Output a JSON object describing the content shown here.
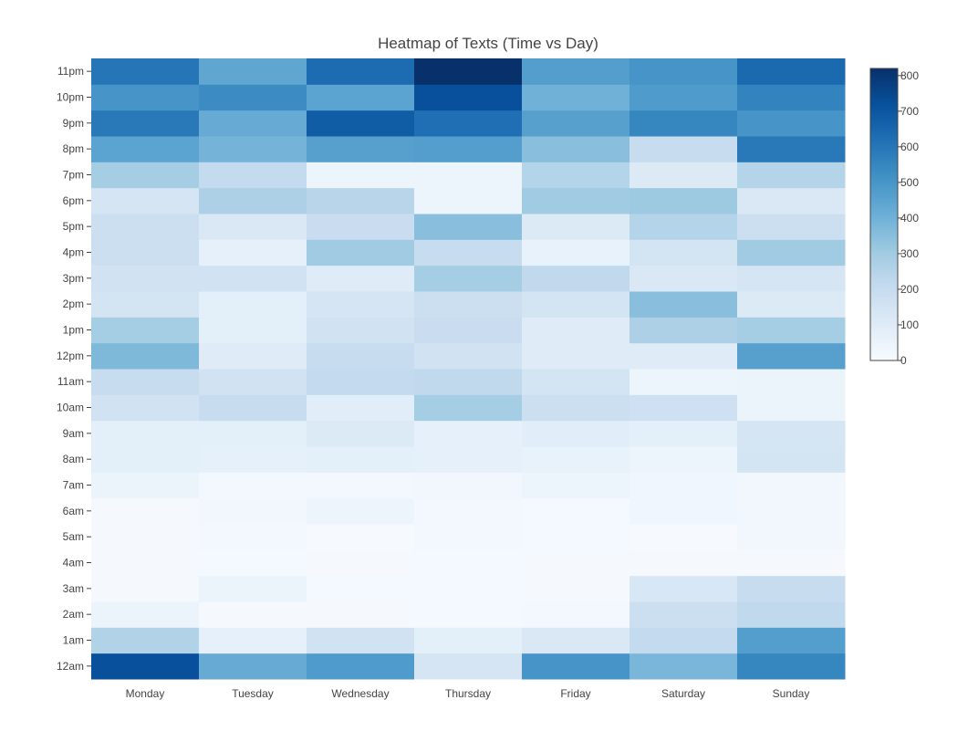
{
  "chart_data": {
    "type": "heatmap",
    "title": "Heatmap of Texts (Time vs Day)",
    "xlabel": "",
    "ylabel": "",
    "x": [
      "Monday",
      "Tuesday",
      "Wednesday",
      "Thursday",
      "Friday",
      "Saturday",
      "Sunday"
    ],
    "y": [
      "12am",
      "1am",
      "2am",
      "3am",
      "4am",
      "5am",
      "6am",
      "7am",
      "8am",
      "9am",
      "10am",
      "11am",
      "12pm",
      "1pm",
      "2pm",
      "3pm",
      "4pm",
      "5pm",
      "6pm",
      "7pm",
      "8pm",
      "9pm",
      "10pm",
      "11pm"
    ],
    "z": [
      [
        720,
        420,
        480,
        140,
        500,
        380,
        550
      ],
      [
        260,
        70,
        160,
        80,
        120,
        210,
        470
      ],
      [
        50,
        10,
        10,
        15,
        20,
        180,
        220
      ],
      [
        10,
        50,
        15,
        15,
        10,
        130,
        200
      ],
      [
        10,
        15,
        10,
        15,
        10,
        10,
        10
      ],
      [
        10,
        20,
        5,
        20,
        15,
        5,
        25
      ],
      [
        10,
        25,
        40,
        20,
        15,
        30,
        25
      ],
      [
        50,
        20,
        20,
        25,
        40,
        30,
        25
      ],
      [
        80,
        70,
        80,
        70,
        60,
        40,
        150
      ],
      [
        80,
        80,
        110,
        70,
        90,
        80,
        140
      ],
      [
        160,
        200,
        90,
        290,
        180,
        170,
        50
      ],
      [
        200,
        160,
        210,
        220,
        150,
        40,
        50
      ],
      [
        370,
        100,
        200,
        160,
        100,
        100,
        460
      ],
      [
        290,
        80,
        160,
        190,
        100,
        270,
        290
      ],
      [
        150,
        80,
        140,
        180,
        150,
        350,
        110
      ],
      [
        160,
        160,
        100,
        290,
        220,
        120,
        140
      ],
      [
        180,
        70,
        300,
        200,
        60,
        150,
        300
      ],
      [
        180,
        120,
        190,
        350,
        110,
        250,
        180
      ],
      [
        140,
        270,
        240,
        40,
        300,
        310,
        120
      ],
      [
        290,
        210,
        40,
        40,
        250,
        110,
        250
      ],
      [
        450,
        390,
        460,
        470,
        350,
        200,
        590
      ],
      [
        590,
        420,
        680,
        620,
        460,
        550,
        500
      ],
      [
        500,
        530,
        450,
        720,
        400,
        480,
        560
      ],
      [
        600,
        440,
        630,
        820,
        470,
        500,
        640
      ]
    ],
    "zmin": 0,
    "zmax": 820,
    "colorscale": [
      "#f7fbff",
      "#deebf7",
      "#c6dbef",
      "#9ecae1",
      "#6baed6",
      "#4292c6",
      "#2171b5",
      "#08519c",
      "#08306b"
    ],
    "colorbar_ticks": [
      0,
      100,
      200,
      300,
      400,
      500,
      600,
      700,
      800
    ]
  }
}
